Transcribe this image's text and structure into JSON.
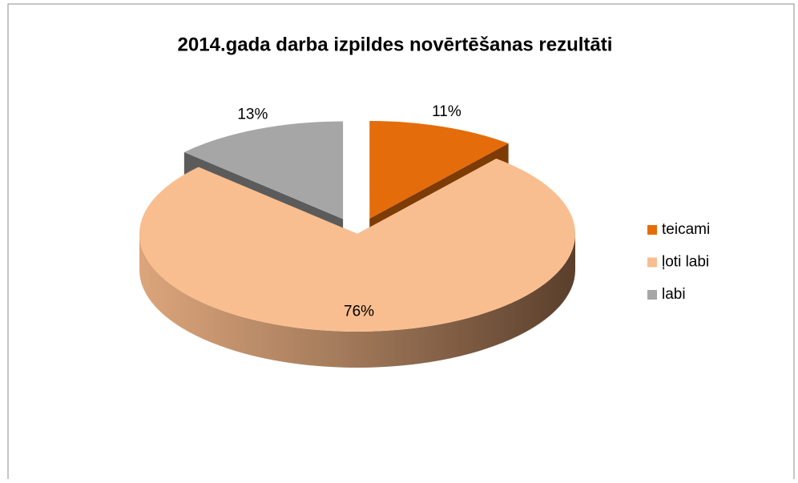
{
  "chart_data": {
    "type": "pie",
    "title": "2014.gada darba izpildes novērtēšanas rezultāti",
    "categories": [
      "teicami",
      "ļoti labi",
      "labi"
    ],
    "values": [
      11,
      76,
      13
    ],
    "value_labels": [
      "11%",
      "76%",
      "13%"
    ],
    "colors": [
      "#e46c0a",
      "#f9be8f",
      "#a6a6a6"
    ],
    "legend": "right"
  }
}
